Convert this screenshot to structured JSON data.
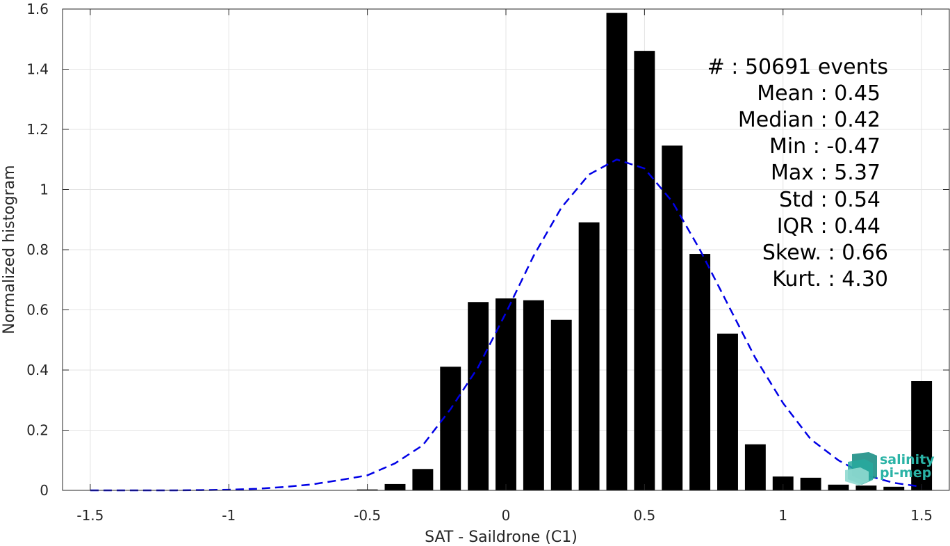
{
  "chart_data": {
    "type": "bar",
    "xlabel": "SAT - Saildrone (C1)",
    "ylabel": "Normalized histogram",
    "xlim": [
      -1.6,
      1.6
    ],
    "ylim": [
      0,
      1.6
    ],
    "xticks": [
      -1.5,
      -1,
      -0.5,
      0,
      0.5,
      1,
      1.5
    ],
    "xtick_labels": [
      "-1.5",
      "-1",
      "-0.5",
      "0",
      "0.5",
      "1",
      "1.5"
    ],
    "yticks": [
      0,
      0.2,
      0.4,
      0.6,
      0.8,
      1,
      1.2,
      1.4,
      1.6
    ],
    "ytick_labels": [
      "0",
      "0.2",
      "0.4",
      "0.6",
      "0.8",
      "1",
      "1.2",
      "1.4",
      "1.6"
    ],
    "grid": true,
    "bar_width": 0.075,
    "bars": {
      "x": [
        -0.5,
        -0.4,
        -0.3,
        -0.2,
        -0.1,
        0.0,
        0.1,
        0.2,
        0.3,
        0.4,
        0.5,
        0.6,
        0.7,
        0.8,
        0.9,
        1.0,
        1.1,
        1.2,
        1.3,
        1.4,
        1.5
      ],
      "values": [
        0.003,
        0.021,
        0.071,
        0.411,
        0.626,
        0.638,
        0.632,
        0.567,
        0.891,
        1.587,
        1.461,
        1.146,
        0.786,
        0.521,
        0.153,
        0.046,
        0.042,
        0.019,
        0.016,
        0.012,
        0.363
      ],
      "color": "#000000"
    },
    "fit_curve": {
      "style": "dashed",
      "color": "#0000e6",
      "x": [
        -1.5,
        -1.4,
        -1.3,
        -1.2,
        -1.1,
        -1.0,
        -0.9,
        -0.8,
        -0.7,
        -0.6,
        -0.5,
        -0.4,
        -0.3,
        -0.2,
        -0.1,
        0.0,
        0.1,
        0.2,
        0.3,
        0.4,
        0.5,
        0.6,
        0.7,
        0.8,
        0.9,
        1.0,
        1.1,
        1.2,
        1.3,
        1.4,
        1.5
      ],
      "y": [
        0.0,
        0.0,
        0.0,
        0.0,
        0.001,
        0.002,
        0.005,
        0.011,
        0.02,
        0.034,
        0.05,
        0.09,
        0.15,
        0.27,
        0.41,
        0.59,
        0.78,
        0.94,
        1.05,
        1.1,
        1.07,
        0.96,
        0.8,
        0.62,
        0.44,
        0.29,
        0.17,
        0.1,
        0.05,
        0.025,
        0.012
      ]
    },
    "annotations": [
      "#  : 50691 events",
      "Mean : 0.45",
      "Median : 0.42",
      "Min : -0.47",
      "Max : 5.37",
      "Std : 0.54",
      "IQR : 0.44",
      "Skew. : 0.66",
      "Kurt. : 4.30"
    ]
  },
  "logo": {
    "line1": "salinity",
    "line2": "pi-mep",
    "color": "#2ab3a6"
  }
}
